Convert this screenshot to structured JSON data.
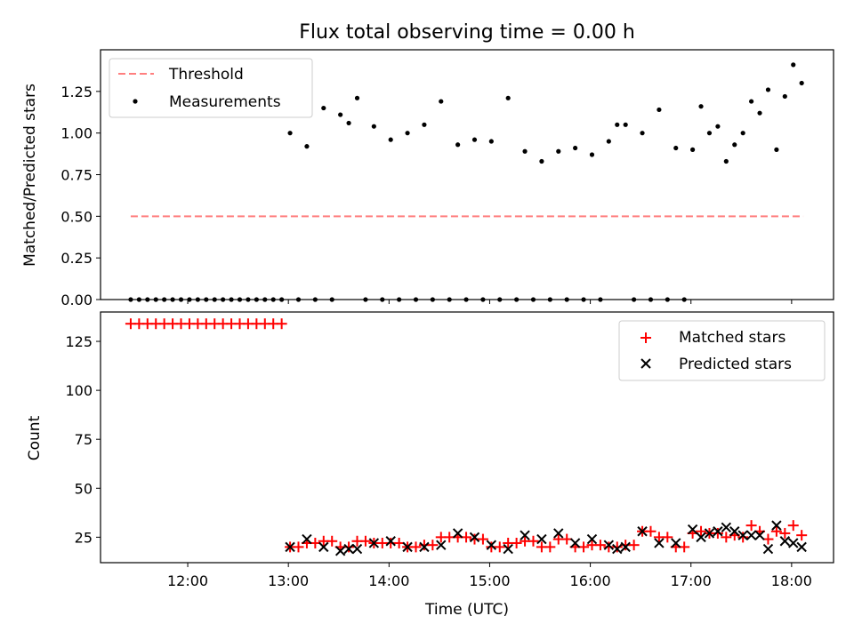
{
  "chart_data": [
    {
      "type": "scatter",
      "title": "Flux total observing time = 0.00 h",
      "xlabel": "",
      "ylabel": "Matched/Predicted stars",
      "ylim": [
        0,
        1.5
      ],
      "yticks": [
        "0.00",
        "0.25",
        "0.50",
        "0.75",
        "1.00",
        "1.25"
      ],
      "legend_position": "top-left",
      "threshold": {
        "name": "Threshold",
        "value": 0.5,
        "x_range": [
          "11:26",
          "18:07"
        ],
        "color": "#ff7f7f",
        "style": "dashed"
      },
      "series": [
        {
          "name": "Measurements",
          "color": "#000000",
          "points": [
            [
              "11:26",
              0
            ],
            [
              "11:31",
              0
            ],
            [
              "11:36",
              0
            ],
            [
              "11:41",
              0
            ],
            [
              "11:46",
              0
            ],
            [
              "11:51",
              0
            ],
            [
              "11:56",
              0
            ],
            [
              "12:01",
              0
            ],
            [
              "12:06",
              0
            ],
            [
              "12:11",
              0
            ],
            [
              "12:16",
              0
            ],
            [
              "12:21",
              0
            ],
            [
              "12:26",
              0
            ],
            [
              "12:31",
              0
            ],
            [
              "12:36",
              0
            ],
            [
              "12:41",
              0
            ],
            [
              "12:46",
              0
            ],
            [
              "12:51",
              0
            ],
            [
              "12:56",
              0
            ],
            [
              "13:01",
              1.0
            ],
            [
              "13:06",
              0
            ],
            [
              "13:11",
              0.92
            ],
            [
              "13:16",
              0
            ],
            [
              "13:21",
              1.15
            ],
            [
              "13:26",
              0
            ],
            [
              "13:31",
              1.11
            ],
            [
              "13:36",
              1.06
            ],
            [
              "13:41",
              1.21
            ],
            [
              "13:46",
              0
            ],
            [
              "13:51",
              1.04
            ],
            [
              "13:56",
              0
            ],
            [
              "14:01",
              0.96
            ],
            [
              "14:06",
              0
            ],
            [
              "14:11",
              1.0
            ],
            [
              "14:16",
              0
            ],
            [
              "14:21",
              1.05
            ],
            [
              "14:26",
              0
            ],
            [
              "14:31",
              1.19
            ],
            [
              "14:36",
              0
            ],
            [
              "14:41",
              0.93
            ],
            [
              "14:46",
              0
            ],
            [
              "14:51",
              0.96
            ],
            [
              "14:56",
              0
            ],
            [
              "15:01",
              0.95
            ],
            [
              "15:06",
              0
            ],
            [
              "15:11",
              1.21
            ],
            [
              "15:16",
              0
            ],
            [
              "15:21",
              0.89
            ],
            [
              "15:26",
              0
            ],
            [
              "15:31",
              0.83
            ],
            [
              "15:36",
              0
            ],
            [
              "15:41",
              0.89
            ],
            [
              "15:46",
              0
            ],
            [
              "15:51",
              0.91
            ],
            [
              "15:56",
              0
            ],
            [
              "16:01",
              0.87
            ],
            [
              "16:06",
              0
            ],
            [
              "16:11",
              0.95
            ],
            [
              "16:16",
              1.05
            ],
            [
              "16:21",
              1.05
            ],
            [
              "16:26",
              0
            ],
            [
              "16:31",
              1.0
            ],
            [
              "16:36",
              0
            ],
            [
              "16:41",
              1.14
            ],
            [
              "16:46",
              0
            ],
            [
              "16:51",
              0.91
            ],
            [
              "16:56",
              0
            ],
            [
              "17:01",
              0.9
            ],
            [
              "17:06",
              1.16
            ],
            [
              "17:11",
              1.0
            ],
            [
              "17:16",
              1.04
            ],
            [
              "17:21",
              0.83
            ],
            [
              "17:26",
              0.93
            ],
            [
              "17:31",
              1.0
            ],
            [
              "17:36",
              1.19
            ],
            [
              "17:41",
              1.12
            ],
            [
              "17:46",
              1.26
            ],
            [
              "17:51",
              0.9
            ],
            [
              "17:56",
              1.22
            ],
            [
              "18:01",
              1.41
            ],
            [
              "18:06",
              1.3
            ]
          ]
        }
      ]
    },
    {
      "type": "scatter",
      "title": "",
      "xlabel": "Time (UTC)",
      "ylabel": "Count",
      "xlim": [
        "11:08",
        "18:25"
      ],
      "xticks": [
        "12:00",
        "13:00",
        "14:00",
        "15:00",
        "16:00",
        "17:00",
        "18:00"
      ],
      "ylim": [
        12,
        140
      ],
      "yticks": [
        "25",
        "50",
        "75",
        "100",
        "125"
      ],
      "legend_position": "top-right",
      "series": [
        {
          "name": "Matched stars",
          "color": "#ff0000",
          "marker": "plus",
          "points": [
            [
              "11:26",
              134
            ],
            [
              "11:31",
              134
            ],
            [
              "11:36",
              134
            ],
            [
              "11:41",
              134
            ],
            [
              "11:46",
              134
            ],
            [
              "11:51",
              134
            ],
            [
              "11:56",
              134
            ],
            [
              "12:01",
              134
            ],
            [
              "12:06",
              134
            ],
            [
              "12:11",
              134
            ],
            [
              "12:16",
              134
            ],
            [
              "12:21",
              134
            ],
            [
              "12:26",
              134
            ],
            [
              "12:31",
              134
            ],
            [
              "12:36",
              134
            ],
            [
              "12:41",
              134
            ],
            [
              "12:46",
              134
            ],
            [
              "12:51",
              134
            ],
            [
              "12:56",
              134
            ],
            [
              "13:01",
              20
            ],
            [
              "13:06",
              20
            ],
            [
              "13:11",
              22
            ],
            [
              "13:16",
              22
            ],
            [
              "13:21",
              23
            ],
            [
              "13:26",
              23
            ],
            [
              "13:31",
              20
            ],
            [
              "13:36",
              20
            ],
            [
              "13:41",
              23
            ],
            [
              "13:46",
              23
            ],
            [
              "13:51",
              22
            ],
            [
              "13:56",
              22
            ],
            [
              "14:01",
              22
            ],
            [
              "14:06",
              22
            ],
            [
              "14:11",
              20
            ],
            [
              "14:16",
              20
            ],
            [
              "14:21",
              21
            ],
            [
              "14:26",
              21
            ],
            [
              "14:31",
              25
            ],
            [
              "14:36",
              25
            ],
            [
              "14:41",
              25
            ],
            [
              "14:46",
              25
            ],
            [
              "14:51",
              24
            ],
            [
              "14:56",
              24
            ],
            [
              "15:01",
              20
            ],
            [
              "15:06",
              20
            ],
            [
              "15:11",
              22
            ],
            [
              "15:16",
              22
            ],
            [
              "15:21",
              23
            ],
            [
              "15:26",
              23
            ],
            [
              "15:31",
              20
            ],
            [
              "15:36",
              20
            ],
            [
              "15:41",
              24
            ],
            [
              "15:46",
              24
            ],
            [
              "15:51",
              20
            ],
            [
              "15:56",
              20
            ],
            [
              "16:01",
              21
            ],
            [
              "16:06",
              21
            ],
            [
              "16:11",
              20
            ],
            [
              "16:16",
              20
            ],
            [
              "16:21",
              21
            ],
            [
              "16:26",
              21
            ],
            [
              "16:31",
              28
            ],
            [
              "16:36",
              28
            ],
            [
              "16:41",
              25
            ],
            [
              "16:46",
              25
            ],
            [
              "16:51",
              20
            ],
            [
              "16:56",
              20
            ],
            [
              "17:01",
              27
            ],
            [
              "17:06",
              28
            ],
            [
              "17:11",
              27
            ],
            [
              "17:16",
              27
            ],
            [
              "17:21",
              25
            ],
            [
              "17:26",
              26
            ],
            [
              "17:31",
              25
            ],
            [
              "17:36",
              31
            ],
            [
              "17:41",
              28
            ],
            [
              "17:46",
              24
            ],
            [
              "17:51",
              28
            ],
            [
              "17:56",
              27
            ],
            [
              "18:01",
              31
            ],
            [
              "18:06",
              26
            ]
          ]
        },
        {
          "name": "Predicted stars",
          "color": "#000000",
          "marker": "x",
          "points": [
            [
              "13:01",
              20
            ],
            [
              "13:11",
              24
            ],
            [
              "13:21",
              20
            ],
            [
              "13:31",
              18
            ],
            [
              "13:36",
              19
            ],
            [
              "13:41",
              19
            ],
            [
              "13:51",
              22
            ],
            [
              "14:01",
              23
            ],
            [
              "14:11",
              20
            ],
            [
              "14:21",
              20
            ],
            [
              "14:31",
              21
            ],
            [
              "14:41",
              27
            ],
            [
              "14:51",
              25
            ],
            [
              "15:01",
              21
            ],
            [
              "15:11",
              19
            ],
            [
              "15:21",
              26
            ],
            [
              "15:31",
              24
            ],
            [
              "15:41",
              27
            ],
            [
              "15:51",
              22
            ],
            [
              "16:01",
              24
            ],
            [
              "16:11",
              21
            ],
            [
              "16:16",
              19
            ],
            [
              "16:21",
              20
            ],
            [
              "16:31",
              28
            ],
            [
              "16:41",
              22
            ],
            [
              "16:51",
              22
            ],
            [
              "17:01",
              29
            ],
            [
              "17:06",
              25
            ],
            [
              "17:11",
              27
            ],
            [
              "17:16",
              28
            ],
            [
              "17:21",
              30
            ],
            [
              "17:26",
              28
            ],
            [
              "17:31",
              26
            ],
            [
              "17:36",
              26
            ],
            [
              "17:41",
              26
            ],
            [
              "17:46",
              19
            ],
            [
              "17:51",
              31
            ],
            [
              "17:56",
              23
            ],
            [
              "18:01",
              22
            ],
            [
              "18:06",
              20
            ]
          ]
        }
      ]
    }
  ]
}
